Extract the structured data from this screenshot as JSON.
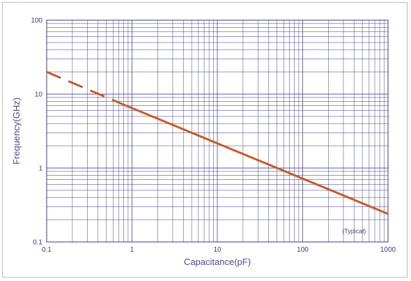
{
  "chart_data": {
    "type": "line",
    "title": "",
    "xlabel": "Capacitance(pF)",
    "ylabel": "Frequency(GHz)",
    "x_scale": "log",
    "y_scale": "log",
    "xlim": [
      0.1,
      1000
    ],
    "ylim": [
      0.1,
      100
    ],
    "x_ticks": [
      "0.1",
      "1",
      "10",
      "100",
      "1000"
    ],
    "y_ticks": [
      "0.1",
      "1",
      "10",
      "100"
    ],
    "grid": true,
    "annotation": "(Typical)",
    "series": [
      {
        "style": "dashed",
        "color": "#c65a2a",
        "x": [
          0.1,
          0.8
        ],
        "y": [
          20,
          7.2
        ]
      },
      {
        "style": "solid",
        "color": "#c65a2a",
        "x": [
          0.8,
          1000
        ],
        "y": [
          7.2,
          0.24
        ]
      }
    ]
  }
}
